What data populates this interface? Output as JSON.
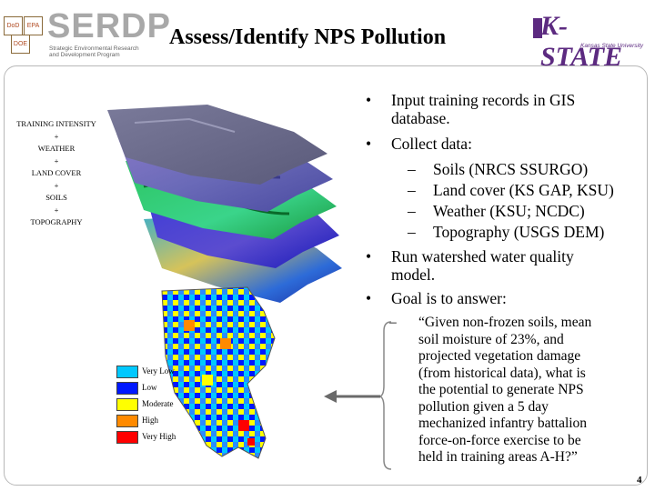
{
  "header": {
    "title": "Assess/Identify NPS Pollution",
    "serdp": {
      "wordmark": "SERDP",
      "subtitle_lines": [
        "Strategic Environmental Research",
        "and Development Program"
      ],
      "mini_logos": [
        "DoD",
        "EPA",
        "DOE"
      ]
    },
    "kstate": {
      "wordmark": "K-STATE",
      "subtitle": "Kansas State University"
    }
  },
  "layers": {
    "labels": [
      "TRAINING INTENSITY",
      "+",
      "WEATHER",
      "+",
      "LAND COVER",
      "+",
      "SOILS",
      "+",
      "TOPOGRAPHY"
    ]
  },
  "legend": {
    "items": [
      {
        "label": "Very Low",
        "color": "#00c8ff"
      },
      {
        "label": "Low",
        "color": "#0018ff"
      },
      {
        "label": "Moderate",
        "color": "#ffff00"
      },
      {
        "label": "High",
        "color": "#ff8a00"
      },
      {
        "label": "Very High",
        "color": "#ff0000"
      }
    ]
  },
  "content": {
    "bullet1": [
      "Input training records in GIS",
      "database."
    ],
    "bullet2": "Collect data:",
    "sub": [
      "Soils (NRCS SSURGO)",
      "Land cover (KS GAP, KSU)",
      "Weather (KSU; NCDC)",
      "Topography (USGS DEM)"
    ],
    "bullet3": [
      "Run watershed water quality",
      "model."
    ],
    "bullet4": "Goal is to answer:",
    "quote_lines": [
      "“Given non-frozen soils, mean",
      "soil moisture of 23%, and",
      "projected vegetation damage",
      "(from historical data), what is",
      "the potential to generate NPS",
      "pollution given a 5 day",
      "mechanized infantry battalion",
      "force-on-force exercise to be",
      "held in training areas A-H?”"
    ],
    "bullet_symbol": "•",
    "dash_symbol": "–"
  },
  "page_number": "4",
  "colors": {
    "kstate_purple": "#5c2a80",
    "serdp_gray": "#a8a8a8"
  }
}
